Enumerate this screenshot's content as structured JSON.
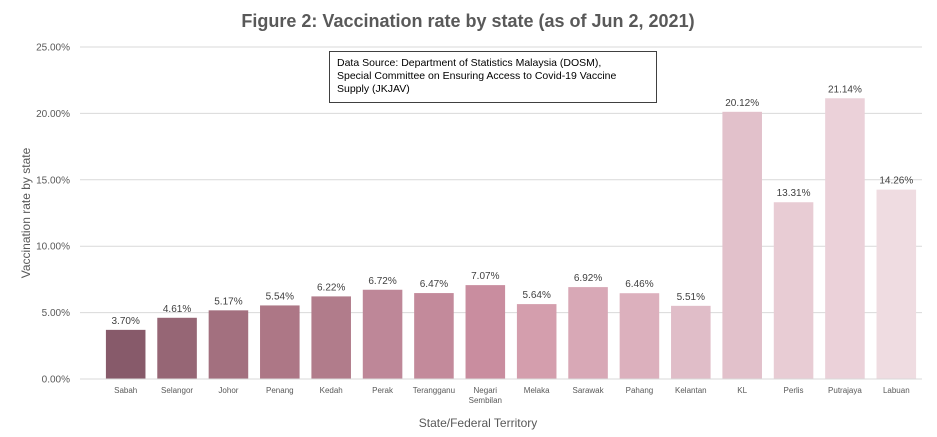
{
  "chart_data": {
    "type": "bar",
    "title": "Figure 2: Vaccination rate by state (as of Jun 2, 2021)",
    "xlabel": "State/Federal Territory",
    "ylabel": "Vaccination rate by state",
    "ylim": [
      0,
      25
    ],
    "yticks": [
      "0.00%",
      "5.00%",
      "10.00%",
      "15.00%",
      "20.00%",
      "25.00%"
    ],
    "grid": true,
    "categories": [
      "Sabah",
      "Selangor",
      "Johor",
      "Penang",
      "Kedah",
      "Perak",
      "Terangganu",
      "Negari Sembilan",
      "Melaka",
      "Sarawak",
      "Pahang",
      "Kelantan",
      "KL",
      "Perlis",
      "Putrajaya",
      "Labuan"
    ],
    "values": [
      3.7,
      4.61,
      5.17,
      5.54,
      6.22,
      6.72,
      6.47,
      7.07,
      5.64,
      6.92,
      6.46,
      5.51,
      20.12,
      13.31,
      21.14,
      14.26
    ],
    "data_labels": [
      "3.70%",
      "4.61%",
      "5.17%",
      "5.54%",
      "6.22%",
      "6.72%",
      "6.47%",
      "7.07%",
      "5.64%",
      "6.92%",
      "6.46%",
      "5.51%",
      "20.12%",
      "13.31%",
      "21.14%",
      "14.26%"
    ],
    "colors": [
      "#875a6a",
      "#966675",
      "#a3707f",
      "#ad7786",
      "#b17c8b",
      "#be8798",
      "#c38a9b",
      "#c98d9f",
      "#d49ead",
      "#d8a8b6",
      "#dcb0bd",
      "#e0bdc8",
      "#e2c1cb",
      "#e8ccd4",
      "#ebd1d9",
      "#efdce1"
    ]
  },
  "annotation": {
    "lines": [
      "Data Source: Department of Statistics Malaysia (DOSM),",
      "Special Committee on Ensuring Access to Covid-19 Vaccine",
      "Supply (JKJAV)"
    ]
  }
}
